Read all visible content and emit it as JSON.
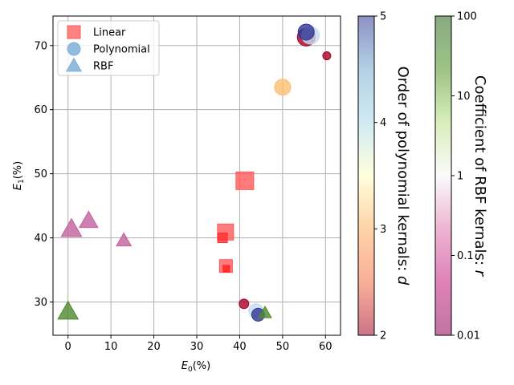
{
  "chart_data": {
    "type": "scatter",
    "xlabel_main": "E",
    "xlabel_sub": "0",
    "xlabel_unit": "(%)",
    "ylabel_main": "E",
    "ylabel_sub": "1",
    "ylabel_unit": "(%)",
    "xlim": [
      -3.5,
      63.5
    ],
    "ylim": [
      24.8,
      74.6
    ],
    "xticks": [
      0,
      10,
      20,
      30,
      40,
      50,
      60
    ],
    "yticks": [
      30,
      40,
      50,
      60,
      70
    ],
    "grid": true,
    "legend_position": "top-left",
    "legend": [
      {
        "label": "Linear",
        "marker": "square",
        "color": "#ff5a5a"
      },
      {
        "label": "Polynomial",
        "marker": "circle",
        "color": "#7fb0d8"
      },
      {
        "label": "RBF",
        "marker": "triangle",
        "color": "#7fb0d8"
      }
    ],
    "series": [
      {
        "marker": "square",
        "points": [
          {
            "x": 41.2,
            "y": 48.9,
            "color": "#ff5a5a",
            "size": 11
          },
          {
            "x": 36.7,
            "y": 40.9,
            "color": "#ff5a5a",
            "size": 10
          },
          {
            "x": 36.0,
            "y": 40.0,
            "color": "#ff3030",
            "size": 6
          },
          {
            "x": 36.8,
            "y": 35.6,
            "color": "#ff5a5a",
            "size": 8
          },
          {
            "x": 36.9,
            "y": 35.2,
            "color": "#ff2020",
            "size": 4
          }
        ]
      },
      {
        "marker": "circle",
        "points": [
          {
            "x": 55.5,
            "y": 71.3,
            "color": "#a50026",
            "size": 11
          },
          {
            "x": 56.5,
            "y": 71.6,
            "color": "#c6dbef",
            "size": 11
          },
          {
            "x": 55.5,
            "y": 72.1,
            "color": "#313695",
            "size": 10
          },
          {
            "x": 60.3,
            "y": 68.4,
            "color": "#a50026",
            "size": 5
          },
          {
            "x": 50.0,
            "y": 63.5,
            "color": "#fdbf6f",
            "size": 10
          },
          {
            "x": 41.0,
            "y": 29.7,
            "color": "#a50026",
            "size": 6
          },
          {
            "x": 43.8,
            "y": 28.6,
            "color": "#c6dbef",
            "size": 9
          },
          {
            "x": 44.3,
            "y": 28.0,
            "color": "#313695",
            "size": 8
          }
        ]
      },
      {
        "marker": "triangle",
        "points": [
          {
            "x": 0.8,
            "y": 41.4,
            "color": "#c2609e",
            "size": 11
          },
          {
            "x": 4.8,
            "y": 42.7,
            "color": "#c2609e",
            "size": 10
          },
          {
            "x": 13.0,
            "y": 39.6,
            "color": "#c2609e",
            "size": 8
          },
          {
            "x": 0.0,
            "y": 28.5,
            "color": "#4d8a2e",
            "size": 11
          },
          {
            "x": 45.9,
            "y": 28.3,
            "color": "#4d8a2e",
            "size": 7
          }
        ]
      }
    ],
    "colorbars": [
      {
        "title_main": "Order of polynomial kernals: ",
        "title_var": "d",
        "ticks": [
          "2",
          "3",
          "4",
          "5"
        ],
        "colormap": [
          "#a50026",
          "#f46d43",
          "#fdae61",
          "#ffffbf",
          "#abd9e9",
          "#74add1",
          "#313695"
        ]
      },
      {
        "title_main": "Coefficient of RBF kernals: ",
        "title_var": "r",
        "ticks": [
          "0.01",
          "0.1",
          "1",
          "10",
          "100"
        ],
        "colormap": [
          "#8e0152",
          "#c51b7d",
          "#de77ae",
          "#f7f7f7",
          "#b8e186",
          "#4d9221",
          "#276419"
        ]
      }
    ]
  }
}
